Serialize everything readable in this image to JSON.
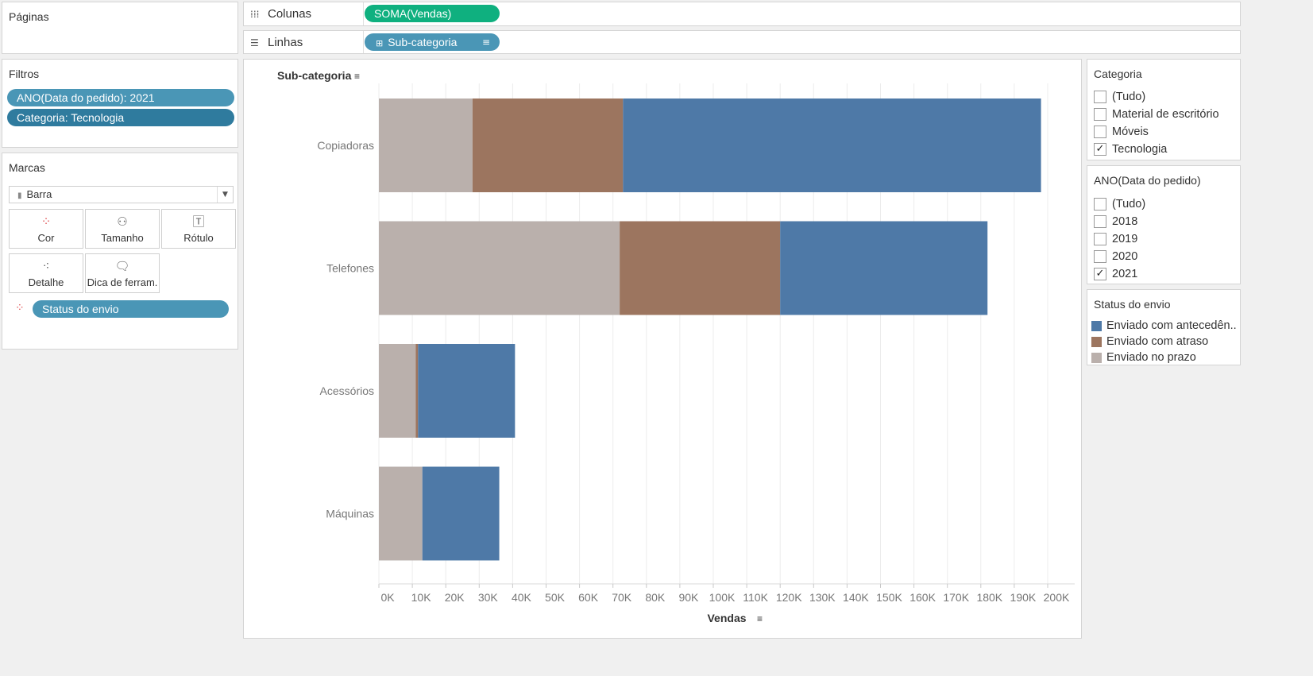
{
  "pages_card": {
    "title": "Páginas"
  },
  "shelves": {
    "columns": {
      "label": "Colunas",
      "pill": "SOMA(Vendas)"
    },
    "rows": {
      "label": "Linhas",
      "pill": "Sub-categoria"
    }
  },
  "filters_card": {
    "title": "Filtros",
    "items": [
      "ANO(Data do pedido): 2021",
      "Categoria: Tecnologia"
    ]
  },
  "marks_card": {
    "title": "Marcas",
    "mark_type": "Barra",
    "buttons": {
      "color": "Cor",
      "size": "Tamanho",
      "label": "Rótulo",
      "detail": "Detalhe",
      "tooltip": "Dica de ferram."
    },
    "color_pill": "Status do envio"
  },
  "category_filter": {
    "title": "Categoria",
    "options": [
      {
        "label": "(Tudo)",
        "checked": false
      },
      {
        "label": "Material de escritório",
        "checked": false
      },
      {
        "label": "Móveis",
        "checked": false
      },
      {
        "label": "Tecnologia",
        "checked": true
      }
    ]
  },
  "year_filter": {
    "title": "ANO(Data do pedido)",
    "options": [
      {
        "label": "(Tudo)",
        "checked": false
      },
      {
        "label": "2018",
        "checked": false
      },
      {
        "label": "2019",
        "checked": false
      },
      {
        "label": "2020",
        "checked": false
      },
      {
        "label": "2021",
        "checked": true
      }
    ]
  },
  "legend": {
    "title": "Status do envio",
    "items": [
      {
        "label": "Enviado com antecedên..",
        "color": "#4e79a7"
      },
      {
        "label": "Enviado com atraso",
        "color": "#9c755f"
      },
      {
        "label": "Enviado no prazo",
        "color": "#bab0ac"
      }
    ]
  },
  "chart_data": {
    "type": "bar",
    "orientation": "horizontal",
    "stacked": true,
    "row_header": "Sub-categoria",
    "xlabel": "Vendas",
    "xlim": [
      0,
      200000
    ],
    "x_ticks": [
      "0K",
      "10K",
      "20K",
      "30K",
      "40K",
      "50K",
      "60K",
      "70K",
      "80K",
      "90K",
      "100K",
      "110K",
      "120K",
      "130K",
      "140K",
      "150K",
      "160K",
      "170K",
      "180K",
      "190K",
      "200K"
    ],
    "categories": [
      "Copiadoras",
      "Telefones",
      "Acessórios",
      "Máquinas"
    ],
    "series": [
      {
        "name": "Enviado no prazo",
        "color": "#bab0ac",
        "values": [
          28000,
          72000,
          11000,
          13000
        ]
      },
      {
        "name": "Enviado com atraso",
        "color": "#9c755f",
        "values": [
          45000,
          48000,
          700,
          0
        ]
      },
      {
        "name": "Enviado com antecedên..",
        "color": "#4e79a7",
        "values": [
          125000,
          62000,
          29000,
          23000
        ]
      }
    ],
    "grid": true,
    "legend": "right"
  }
}
